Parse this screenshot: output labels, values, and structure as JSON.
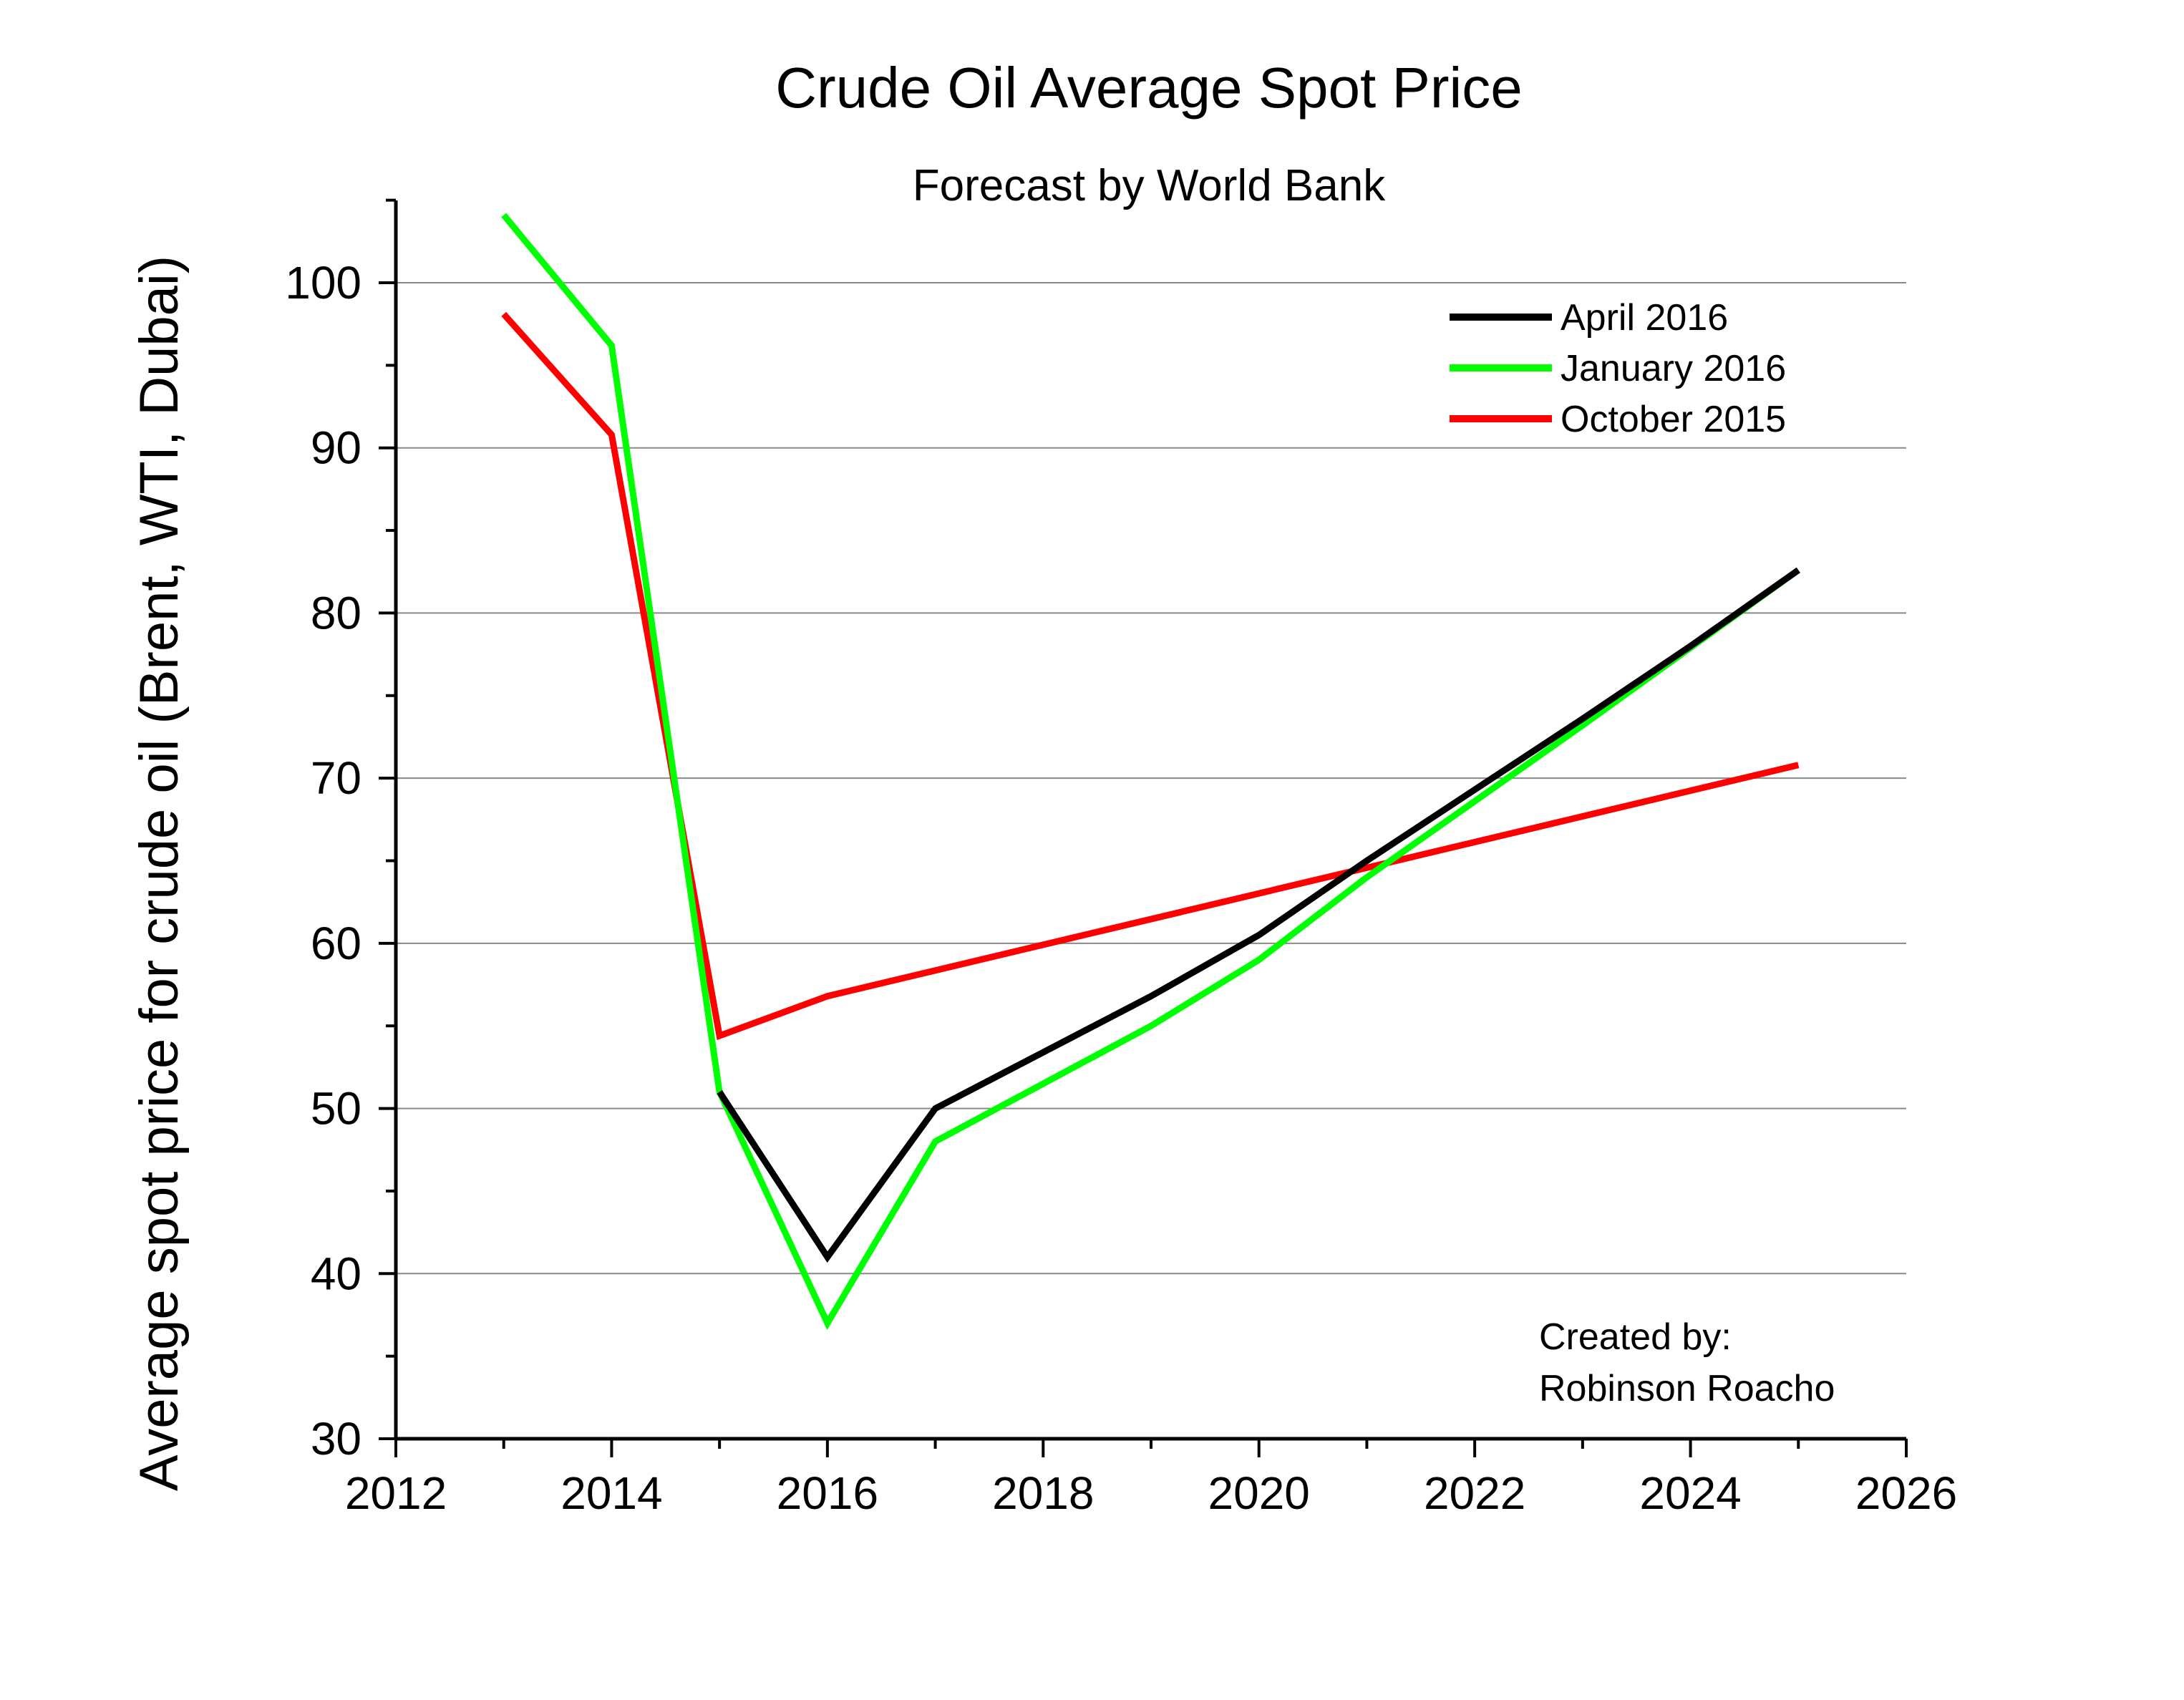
{
  "chart_data": {
    "type": "line",
    "title": "Crude Oil Average Spot Price",
    "subtitle": "Forecast by World Bank",
    "xlabel": "",
    "ylabel": "Average spot price for crude oil (Brent, WTI, Dubai)",
    "xlim": [
      2012,
      2026
    ],
    "ylim": [
      30,
      105
    ],
    "xticks": [
      "2012",
      "2014",
      "2016",
      "2018",
      "2020",
      "2022",
      "2024",
      "2026"
    ],
    "yticks": [
      "30",
      "40",
      "50",
      "60",
      "70",
      "80",
      "90",
      "100"
    ],
    "grid": "horizontal",
    "legend_position": "top-right",
    "series": [
      {
        "name": "April 2016",
        "color": "#000000",
        "x": [
          2015,
          2016,
          2017,
          2018,
          2019,
          2020,
          2021,
          2022,
          2023,
          2024,
          2025
        ],
        "values": [
          51.0,
          41.0,
          50.0,
          53.4,
          56.8,
          60.5,
          65.0,
          69.3,
          73.6,
          78.0,
          82.6
        ]
      },
      {
        "name": "January 2016",
        "color": "#00ff00",
        "x": [
          2013,
          2014,
          2015,
          2016,
          2017,
          2018,
          2019,
          2020,
          2021,
          2022,
          2023,
          2024,
          2025
        ],
        "values": [
          104.1,
          96.2,
          51.0,
          37.0,
          48.0,
          51.5,
          55.0,
          59.0,
          64.0,
          68.6,
          73.2,
          77.9,
          82.6
        ]
      },
      {
        "name": "October 2015",
        "color": "#ff0000",
        "x": [
          2013,
          2014,
          2015,
          2016,
          2025
        ],
        "values": [
          98.1,
          90.8,
          54.4,
          56.8,
          70.8
        ]
      }
    ]
  },
  "credit": {
    "line1": "Created by:",
    "line2": "Robinson Roacho"
  }
}
